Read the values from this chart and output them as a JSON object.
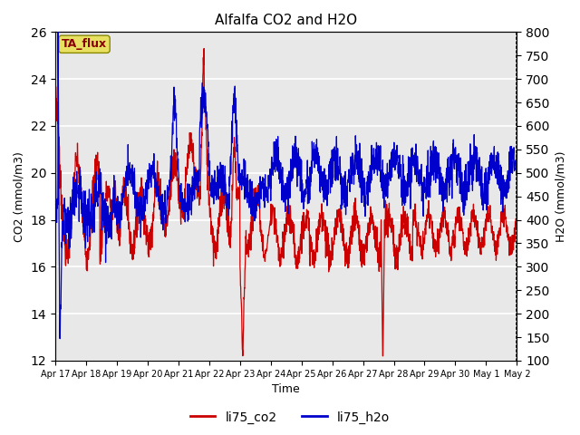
{
  "title": "Alfalfa CO2 and H2O",
  "xlabel": "Time",
  "ylabel_left": "CO2 (mmol/m3)",
  "ylabel_right": "H2O (mmol/m3)",
  "ylim_left": [
    12,
    26
  ],
  "ylim_right": [
    100,
    800
  ],
  "yticks_left": [
    12,
    14,
    16,
    18,
    20,
    22,
    24,
    26
  ],
  "yticks_right": [
    100,
    150,
    200,
    250,
    300,
    350,
    400,
    450,
    500,
    550,
    600,
    650,
    700,
    750,
    800
  ],
  "x_tick_labels": [
    "Apr 17",
    "Apr 18",
    "Apr 19",
    "Apr 20",
    "Apr 21",
    "Apr 22",
    "Apr 23",
    "Apr 24",
    "Apr 25",
    "Apr 26",
    "Apr 27",
    "Apr 28",
    "Apr 29",
    "Apr 30",
    "May 1",
    "May 2"
  ],
  "color_co2": "#cc0000",
  "color_h2o": "#0000cc",
  "annotation_text": "TA_flux",
  "bg_color": "#e8e8e8",
  "grid_color": "#ffffff",
  "legend_items": [
    "li75_co2",
    "li75_h2o"
  ],
  "n_days": 15.5,
  "n_points": 2000,
  "linewidth": 0.9
}
